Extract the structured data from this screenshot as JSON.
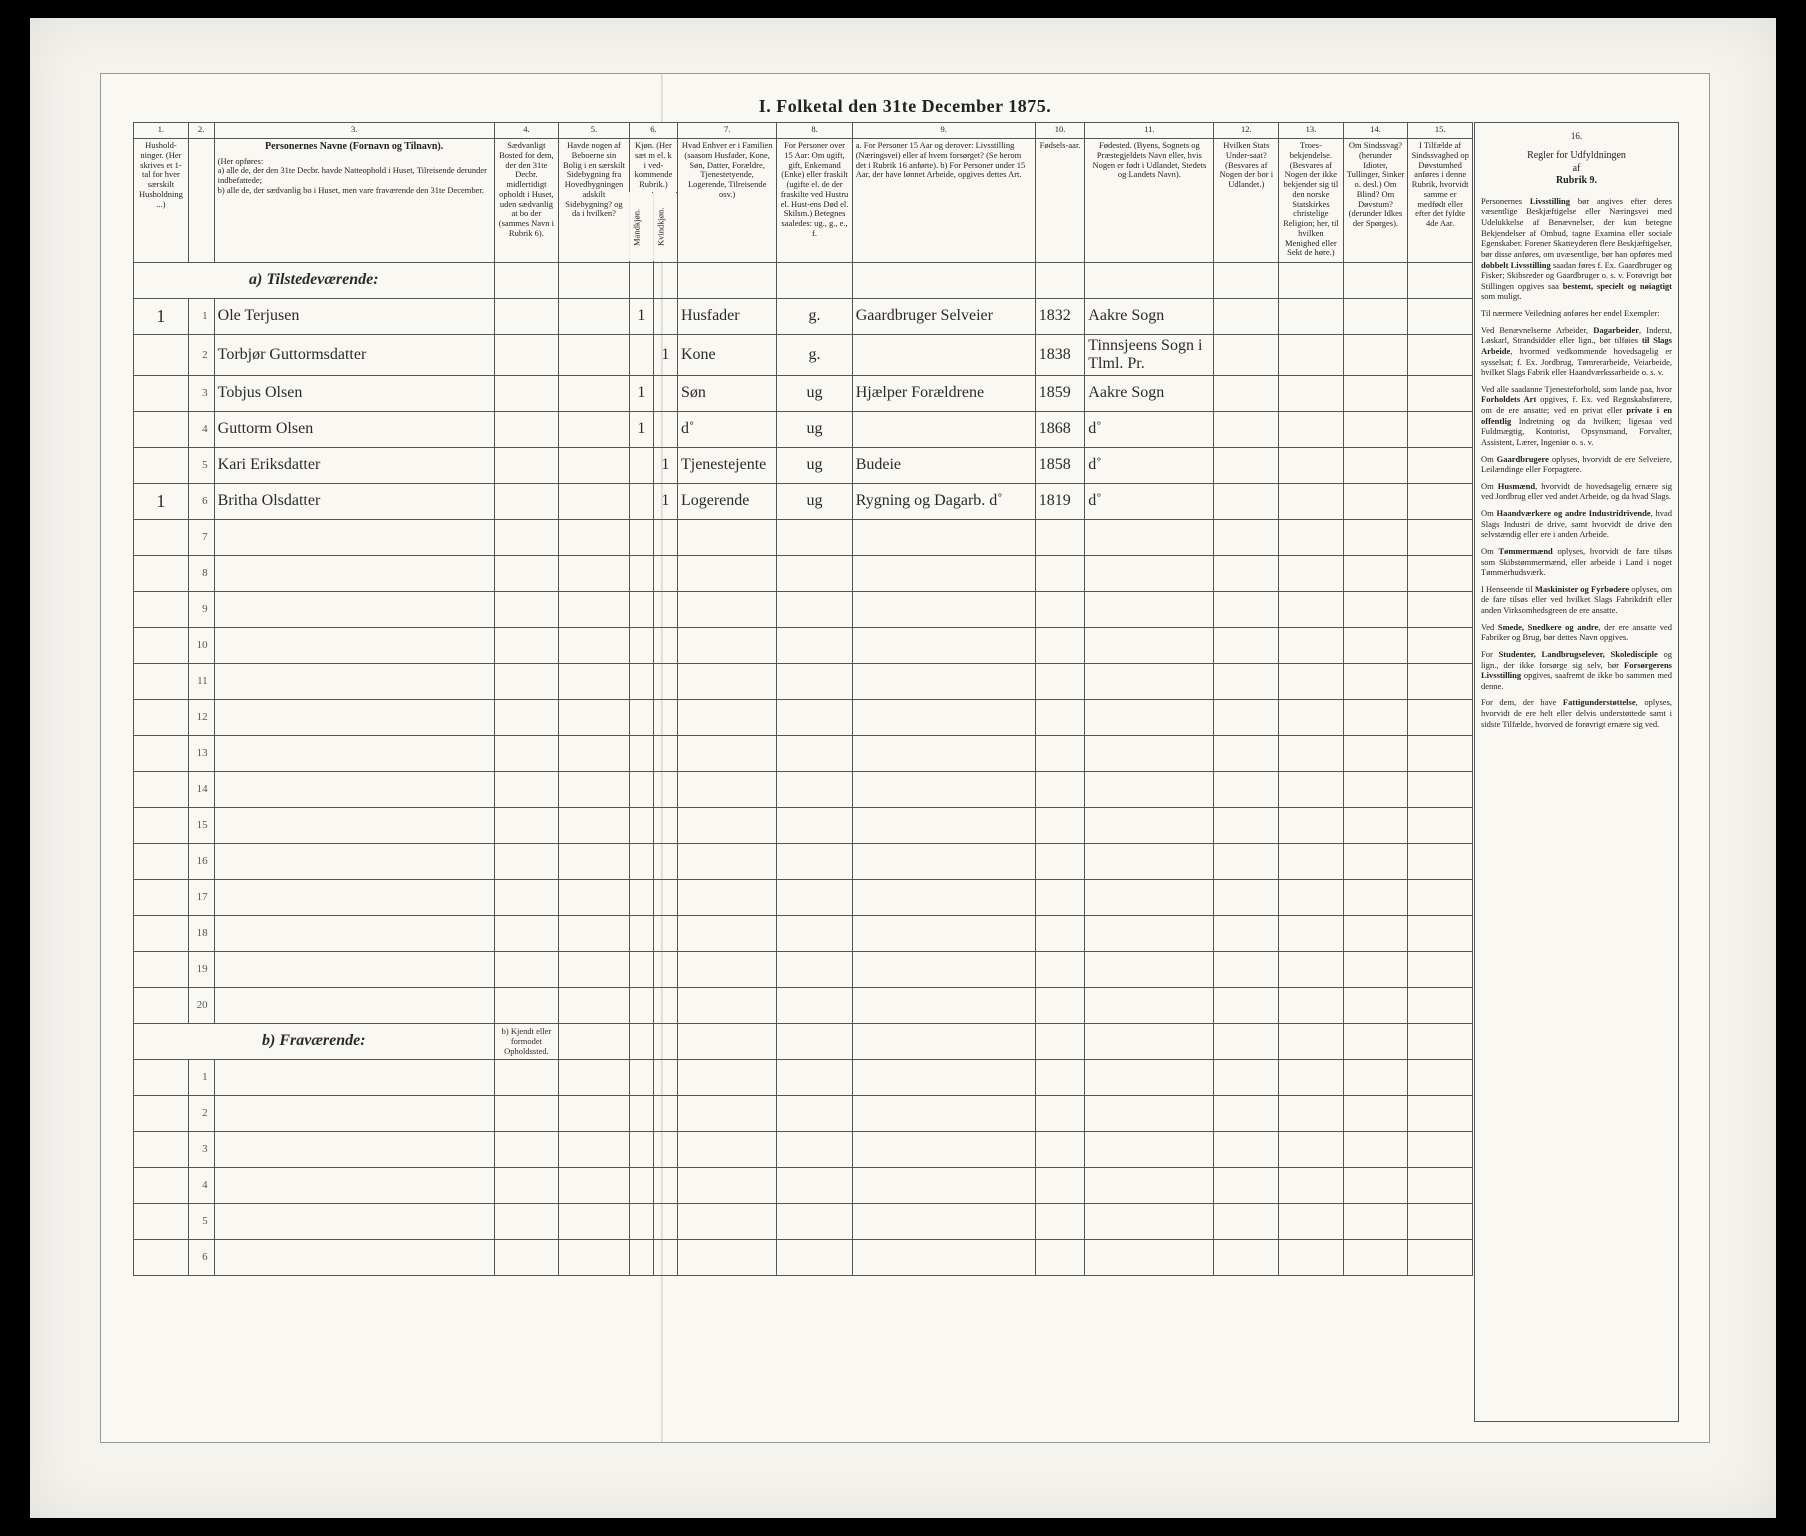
{
  "title": "I. Folketal den 31te December 1875.",
  "columns": {
    "nums": [
      "1.",
      "2.",
      "3.",
      "4.",
      "5.",
      "6.",
      "7.",
      "8.",
      "9.",
      "10.",
      "11.",
      "12.",
      "13.",
      "14.",
      "15.",
      "16."
    ],
    "h1": "Hushold-ninger. (Her skrives et 1-tal for hver særskilt Husholdning ...)",
    "h2": "",
    "h3_title": "Personernes Navne (Fornavn og Tilnavn).",
    "h3_sub": "(Her opføres:\na) alle de, der den 31te Decbr. havde Natteophold i Huset, Tilreisende derunder indbefattede;\nb) alle de, der sædvanlig bo i Huset, men vare fraværende den 31te December.",
    "h4": "Sædvanligt Bosted for dem, der den 31te Decbr. midlertidigt opholdt i Huset, uden sædvanlig at bo der (sammes Navn i Rubrik 6).",
    "h5": "Havde nogen af Beboerne sin Bolig i en særskilt Sidebygning fra Hovedbygningen adskilt Sidebygning? og da i hvilken?",
    "h6": "Kjøn. (Her sæt m el. k i ved-kommende Rubrik.)",
    "h6a": "Mandkjøn.",
    "h6b": "Kvindkjøn.",
    "h7": "Hvad Enhver er i Familien (saasom Husfader, Kone, Søn, Datter, Forældre, Tjenestetyende, Logerende, Tilreisende osv.)",
    "h8": "For Personer over 15 Aar: Om ugift, gift, Enkemand (Enke) eller fraskilt (ugifte el. de der fraskilte ved Hustru el. Hust-ens Død el. Skilsm.) Betegnes saaledes: ug., g., e., f.",
    "h9": "a. For Personer 15 Aar og derover: Livsstilling (Næringsvei) eller af hvem forsørget? (Se herom det i Rubrik 16 anførte).\nb) For Personer under 15 Aar, der have lønnet Arbeide, opgives dettes Art.",
    "h10": "Fødsels-aar.",
    "h11": "Fødested. (Byens, Sognets og Præstegjeldets Navn eller, hvis Nogen er født i Udlandet, Stedets og Landets Navn).",
    "h12": "Hvilken Stats Under-saat? (Besvares af Nogen der bor i Udlandet.)",
    "h13": "Troes-bekjendelse. (Besvares af Nogen der ikke bekjender sig til den norske Statskirkes christelige Religion; her, til hvilken Menighed eller Sekt de høre.)",
    "h14": "Om Sindssvag? (herunder Idioter, Tullinger, Sinker o. desl.) Om Blind? Om Døvstum? (derunder Idkes der Spørges).",
    "h15": "I Tilfælde af Sindssvaghed op Døvstumhed anføres i denne Rubrik, hvorvidt samme er medfødt eller efter det fyldte 4de Aar."
  },
  "section_a": "a) Tilstedeværende:",
  "section_b": "b) Fraværende:",
  "section_b_col4": "b) Kjendt eller formodet Opholdssted.",
  "rows_a": [
    {
      "n": "1",
      "hh": "1",
      "name": "Ole Terjusen",
      "c4": "",
      "c5": "",
      "c6a": "1",
      "c6b": "",
      "rel": "Husfader",
      "ms": "g.",
      "occ": "Gaardbruger Selveier",
      "yr": "1832",
      "bp": "Aakre Sogn"
    },
    {
      "n": "2",
      "hh": "",
      "name": "Torbjør Guttormsdatter",
      "c4": "",
      "c5": "",
      "c6a": "",
      "c6b": "1",
      "rel": "Kone",
      "ms": "g.",
      "occ": "",
      "yr": "1838",
      "bp": "Tinnsjeens Sogn i Tlml. Pr."
    },
    {
      "n": "3",
      "hh": "",
      "name": "Tobjus Olsen",
      "c4": "",
      "c5": "",
      "c6a": "1",
      "c6b": "",
      "rel": "Søn",
      "ms": "ug",
      "occ": "Hjælper Forældrene",
      "yr": "1859",
      "bp": "Aakre Sogn"
    },
    {
      "n": "4",
      "hh": "",
      "name": "Guttorm Olsen",
      "c4": "",
      "c5": "",
      "c6a": "1",
      "c6b": "",
      "rel": "d˚",
      "ms": "ug",
      "occ": "",
      "yr": "1868",
      "bp": "d˚"
    },
    {
      "n": "5",
      "hh": "",
      "name": "Kari Eriksdatter",
      "c4": "",
      "c5": "",
      "c6a": "",
      "c6b": "1",
      "rel": "Tjenestejente",
      "ms": "ug",
      "occ": "Budeie",
      "yr": "1858",
      "bp": "d˚"
    },
    {
      "n": "6",
      "hh": "1",
      "name": "Britha Olsdatter",
      "c4": "",
      "c5": "",
      "c6a": "",
      "c6b": "1",
      "rel": "Logerende",
      "ms": "ug",
      "occ": "Rygning og Dagarb. d˚",
      "yr": "1819",
      "bp": "d˚"
    },
    {
      "n": "7"
    },
    {
      "n": "8"
    },
    {
      "n": "9"
    },
    {
      "n": "10"
    },
    {
      "n": "11"
    },
    {
      "n": "12"
    },
    {
      "n": "13"
    },
    {
      "n": "14"
    },
    {
      "n": "15"
    },
    {
      "n": "16"
    },
    {
      "n": "17"
    },
    {
      "n": "18"
    },
    {
      "n": "19"
    },
    {
      "n": "20"
    }
  ],
  "rows_b": [
    {
      "n": "1"
    },
    {
      "n": "2"
    },
    {
      "n": "3"
    },
    {
      "n": "4"
    },
    {
      "n": "5"
    },
    {
      "n": "6"
    }
  ],
  "rules": {
    "header_line1": "Regler for Udfyldningen",
    "header_line2": "af",
    "header_line3": "Rubrik 9.",
    "paras": [
      "Personernes <b>Livsstilling</b> bør angives efter deres væsentlige Beskjæftigelse eller Næringsvei med Udelukkelse af Benævnelser, der kun betegne Bekjendelser af Ombud, tagne Examina eller sociale Egenskaber. Forener Skatteyderen flere Beskjæftigelser, bør disse anføres, om uvæsentlige, bør han opføres med <b>dobbelt Livsstilling</b> saadan føres f. Ex. Gaardbruger og Fisker; Skibsreder og Gaardbruger o. s. v. Forøvrigt bør Stillingen opgives saa <b>bestemt, specielt og nøiagtigt</b> som muligt.",
      "Til nærmere Veiledning anføres her endel Exempler:",
      "Ved Benævnelserne Arbeider, <b>Dagarbeider</b>, Inderst, Løskarl, Strandsidder eller lign., bør tilføies <b>til Slags Arbeide</b>, hvormed vedkommende hovedsagelig er sysselsat; f. Ex. Jordbrug, Tømrerarbeide, Veiarbeide, hvilket Slags Fabrik eller Haandværkssarbeide o. s. v.",
      "Ved alle saadanne Tjenesteforhold, som lande paa, hvor <b>Forholdets Art</b> opgives, f. Ex. ved Regnskabsførere, om de ere ansatte; ved en privat eller <b>private i en offentlig</b> Indretning og da hvilken; ligesaa ved Fuldmægtig, Kontorist, Opsynsmand, Forvalter, Assistent, Lærer, Ingeniør o. s. v.",
      "Om <b>Gaardbrugere</b> oplyses, hvorvidt de ere Selveiere, Leilændinge eller Forpagtere.",
      "Om <b>Husmænd</b>, hvorvidt de hovedsagelig ernære sig ved Jordbrug eller ved andet Arbeide, og da hvad Slags.",
      "Om <b>Haandværkere og andre Industridrivende</b>, hvad Slags Industri de drive, samt hvorvidt de drive den selvstændig eller ere i anden Arbeide.",
      "Om <b>Tømmermænd</b> oplyses, hvorvidt de fare tilsøs som Skibstømmermænd, eller arbeide i Land i noget Tømmerhudsværk.",
      "I Henseende til <b>Maskinister og Fyrbødere</b> oplyses, om de fare tilsøs eller ved hvilket Slags Fabrikdrift eller anden Virksomhedsgreen de ere ansatte.",
      "Ved <b>Smede, Snedkere og andre</b>, der ere ansatte ved Fabriker og Brug, bør dettes Navn opgives.",
      "For <b>Studenter, Landbrugselever, Skoledisciple</b> og lign., der ikke forsørge sig selv, bør <b>Forsørgerens Livsstilling</b> opgives, saafremt de ikke bo sammen med denne.",
      "For dem, der have <b>Fattigunderstøttelse</b>, oplyses, hvorvidt de ere helt eller delvis understøttede samt i sidste Tilfælde, hvorved de forøvrigt ernære sig ved."
    ]
  }
}
